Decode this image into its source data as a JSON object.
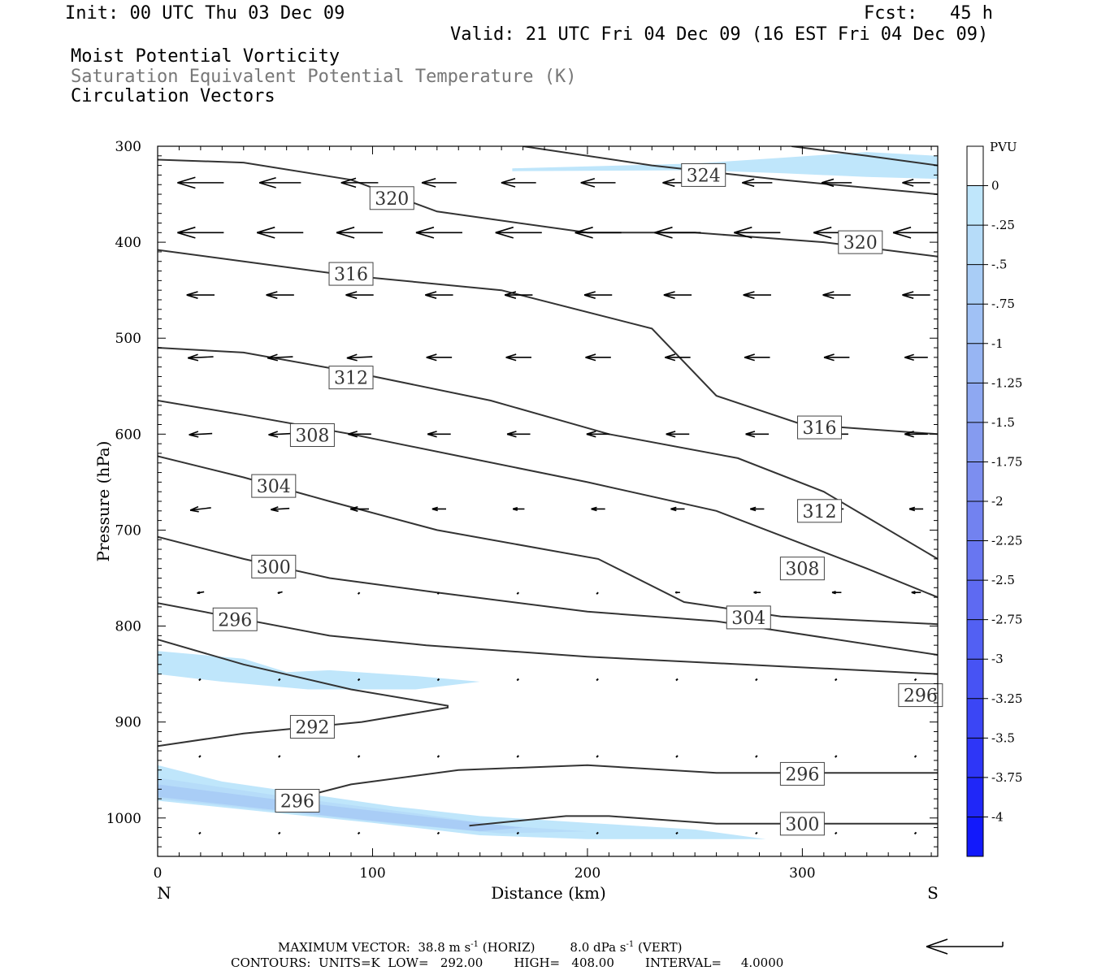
{
  "header": {
    "init": "Init: 00 UTC Thu 03 Dec 09",
    "fcst": "Fcst:   45 h",
    "valid": "Valid: 21 UTC Fri 04 Dec 09 (16 EST Fri 04 Dec 09)",
    "fields": [
      "Moist Potential Vorticity",
      "Saturation Equivalent Potential Temperature (K)",
      "Circulation Vectors"
    ]
  },
  "colors": {
    "contour": "#333333",
    "pv_light": "#bfe6fb",
    "pv_mid": "#a9cdf6",
    "pv_deep": "#9aaaf0",
    "vector": "#000000"
  },
  "chart_data": {
    "type": "contour",
    "xlabel": "Distance (km)",
    "ylabel": "Pressure (hPa)",
    "xlim": [
      0,
      363
    ],
    "ylim": [
      1040,
      300
    ],
    "x_ticks": [
      0,
      100,
      200,
      300
    ],
    "x_end_labels": {
      "left": "N",
      "right": "S"
    },
    "y_ticks": [
      300,
      400,
      500,
      600,
      700,
      800,
      900,
      1000
    ],
    "colorbar": {
      "title": "PVU",
      "labels": [
        "0",
        "-.25",
        "-.5",
        "-.75",
        "-1",
        "-1.25",
        "-1.5",
        "-1.75",
        "-2",
        "-2.25",
        "-2.5",
        "-2.75",
        "-3",
        "-3.25",
        "-3.5",
        "-3.75",
        "-4"
      ],
      "colors": [
        "#ffffff",
        "#bfe6fb",
        "#b6dcf9",
        "#a9cdf6",
        "#a0c1f5",
        "#97b5f3",
        "#8ea8f2",
        "#859bf0",
        "#7c8ef0",
        "#7282f0",
        "#6876f1",
        "#5e6af2",
        "#5260f3",
        "#4753f4",
        "#3b46f5",
        "#2e36f7",
        "#2027f8",
        "#1219fb"
      ]
    },
    "theta_es_contours": [
      {
        "value": 292,
        "labels": [
          {
            "x": 72,
            "p": 905
          }
        ],
        "points": [
          [
            0,
            925
          ],
          [
            40,
            912
          ],
          [
            95,
            900
          ],
          [
            135,
            885
          ],
          [
            135,
            883
          ],
          [
            90,
            866
          ],
          [
            40,
            840
          ],
          [
            0,
            814
          ]
        ]
      },
      {
        "value": 296,
        "labels": [
          {
            "x": 36,
            "p": 793
          },
          {
            "x": 355,
            "p": 872
          }
        ],
        "points": [
          [
            0,
            776
          ],
          [
            40,
            793
          ],
          [
            80,
            810
          ],
          [
            125,
            820
          ],
          [
            200,
            832
          ],
          [
            290,
            842
          ],
          [
            363,
            850
          ]
        ]
      },
      {
        "value": 296,
        "labels": [
          {
            "x": 300,
            "p": 954
          },
          {
            "x": 65,
            "p": 982
          }
        ],
        "points": [
          [
            55,
            985
          ],
          [
            90,
            965
          ],
          [
            140,
            950
          ],
          [
            200,
            945
          ],
          [
            260,
            953
          ],
          [
            363,
            953
          ]
        ]
      },
      {
        "value": 300,
        "labels": [
          {
            "x": 54,
            "p": 738
          },
          {
            "x": 300,
            "p": 1006
          }
        ],
        "points": [
          [
            0,
            707
          ],
          [
            40,
            730
          ],
          [
            80,
            750
          ],
          [
            130,
            765
          ],
          [
            200,
            785
          ],
          [
            260,
            795
          ],
          [
            363,
            830
          ]
        ]
      },
      {
        "value": 300,
        "labels": [],
        "points": [
          [
            145,
            1008
          ],
          [
            190,
            998
          ],
          [
            210,
            998
          ],
          [
            260,
            1006
          ],
          [
            363,
            1006
          ]
        ]
      },
      {
        "value": 304,
        "labels": [
          {
            "x": 54,
            "p": 654
          },
          {
            "x": 275,
            "p": 791
          }
        ],
        "points": [
          [
            0,
            623
          ],
          [
            40,
            645
          ],
          [
            80,
            670
          ],
          [
            130,
            700
          ],
          [
            205,
            730
          ],
          [
            245,
            775
          ],
          [
            290,
            790
          ],
          [
            363,
            798
          ]
        ]
      },
      {
        "value": 308,
        "labels": [
          {
            "x": 72,
            "p": 601
          },
          {
            "x": 300,
            "p": 740
          }
        ],
        "points": [
          [
            0,
            565
          ],
          [
            40,
            580
          ],
          [
            90,
            600
          ],
          [
            145,
            625
          ],
          [
            200,
            650
          ],
          [
            260,
            680
          ],
          [
            330,
            740
          ],
          [
            363,
            770
          ]
        ]
      },
      {
        "value": 312,
        "labels": [
          {
            "x": 90,
            "p": 541
          },
          {
            "x": 308,
            "p": 680
          }
        ],
        "points": [
          [
            0,
            510
          ],
          [
            40,
            515
          ],
          [
            90,
            535
          ],
          [
            155,
            565
          ],
          [
            210,
            600
          ],
          [
            270,
            625
          ],
          [
            310,
            660
          ],
          [
            363,
            730
          ]
        ]
      },
      {
        "value": 316,
        "labels": [
          {
            "x": 90,
            "p": 433
          },
          {
            "x": 308,
            "p": 593
          }
        ],
        "points": [
          [
            0,
            408
          ],
          [
            40,
            420
          ],
          [
            90,
            435
          ],
          [
            160,
            450
          ],
          [
            230,
            490
          ],
          [
            260,
            560
          ],
          [
            300,
            590
          ],
          [
            363,
            600
          ]
        ]
      },
      {
        "value": 320,
        "labels": [
          {
            "x": 109,
            "p": 354
          },
          {
            "x": 327,
            "p": 400
          }
        ],
        "points": [
          [
            0,
            314
          ],
          [
            40,
            317
          ],
          [
            90,
            335
          ],
          [
            130,
            368
          ],
          [
            200,
            390
          ],
          [
            250,
            390
          ],
          [
            310,
            400
          ],
          [
            363,
            415
          ]
        ]
      },
      {
        "value": 324,
        "labels": [
          {
            "x": 254,
            "p": 330
          }
        ],
        "points": [
          [
            170,
            300
          ],
          [
            230,
            320
          ],
          [
            290,
            335
          ],
          [
            363,
            350
          ]
        ]
      },
      {
        "value": 324,
        "labels": [],
        "points": [
          [
            295,
            300
          ],
          [
            330,
            310
          ],
          [
            363,
            320
          ]
        ]
      }
    ],
    "pv_shading": [
      {
        "level": -0.25,
        "points": [
          [
            0,
            826
          ],
          [
            40,
            834
          ],
          [
            60,
            848
          ],
          [
            80,
            846
          ],
          [
            120,
            852
          ],
          [
            150,
            858
          ],
          [
            120,
            866
          ],
          [
            70,
            866
          ],
          [
            30,
            858
          ],
          [
            0,
            850
          ]
        ]
      },
      {
        "level": -0.25,
        "points": [
          [
            165,
            323
          ],
          [
            250,
            318
          ],
          [
            290,
            312
          ],
          [
            330,
            306
          ],
          [
            363,
            310
          ],
          [
            363,
            334
          ],
          [
            330,
            332
          ],
          [
            290,
            328
          ],
          [
            250,
            325
          ],
          [
            165,
            326
          ]
        ]
      },
      {
        "level": -0.25,
        "points": [
          [
            0,
            945
          ],
          [
            30,
            962
          ],
          [
            70,
            975
          ],
          [
            110,
            988
          ],
          [
            150,
            998
          ],
          [
            200,
            1005
          ],
          [
            250,
            1012
          ],
          [
            283,
            1022
          ],
          [
            200,
            1022
          ],
          [
            150,
            1018
          ],
          [
            100,
            1005
          ],
          [
            0,
            982
          ]
        ]
      },
      {
        "level": -0.5,
        "points": [
          [
            0,
            958
          ],
          [
            60,
            978
          ],
          [
            120,
            995
          ],
          [
            160,
            1008
          ],
          [
            200,
            1014
          ],
          [
            160,
            1016
          ],
          [
            110,
            1006
          ],
          [
            0,
            980
          ]
        ]
      },
      {
        "level": -0.75,
        "points": [
          [
            0,
            965
          ],
          [
            60,
            982
          ],
          [
            130,
            1000
          ],
          [
            170,
            1010
          ],
          [
            150,
            1014
          ],
          [
            100,
            1003
          ],
          [
            0,
            978
          ]
        ]
      }
    ],
    "circulation_vectors": {
      "rows": [
        {
          "p": 338,
          "x": [
            20,
            57,
            94,
            131,
            168,
            205,
            242,
            279,
            316,
            353
          ],
          "u": [
            -20,
            -18,
            -16,
            -15,
            -15,
            -15,
            -13,
            -13,
            -13,
            -12
          ],
          "w": [
            0,
            0,
            0,
            0,
            0,
            0,
            0,
            0,
            0,
            0
          ]
        },
        {
          "p": 390,
          "x": [
            20,
            57,
            94,
            131,
            168,
            205,
            242,
            279,
            316,
            353
          ],
          "u": [
            -20,
            -20,
            -20,
            -20,
            -20,
            -20,
            -20,
            -20,
            -20,
            -20
          ],
          "w": [
            0,
            0,
            0,
            0,
            0,
            0,
            0,
            0,
            0,
            0
          ]
        },
        {
          "p": 455,
          "x": [
            20,
            57,
            94,
            131,
            168,
            205,
            242,
            279,
            316,
            353
          ],
          "u": [
            -12,
            -12,
            -12,
            -12,
            -12,
            -12,
            -12,
            -12,
            -12,
            -12
          ],
          "w": [
            0,
            0,
            0,
            0,
            0,
            0,
            0,
            0,
            0,
            0
          ]
        },
        {
          "p": 520,
          "x": [
            20,
            57,
            94,
            131,
            168,
            205,
            242,
            279,
            316,
            353
          ],
          "u": [
            -11,
            -11,
            -11,
            -11,
            -11,
            -11,
            -11,
            -11,
            -11,
            -10
          ],
          "w": [
            1,
            1,
            1,
            0,
            0,
            0,
            0,
            0,
            0,
            0
          ]
        },
        {
          "p": 600,
          "x": [
            20,
            57,
            94,
            131,
            168,
            205,
            242,
            279,
            316,
            353
          ],
          "u": [
            -10,
            -10,
            -10,
            -10,
            -10,
            -10,
            -10,
            -10,
            -10,
            -10
          ],
          "w": [
            1,
            1,
            0,
            0,
            0,
            0,
            0,
            0,
            0,
            0
          ]
        },
        {
          "p": 678,
          "x": [
            20,
            57,
            94,
            131,
            168,
            205,
            242,
            279,
            316,
            353
          ],
          "u": [
            -9,
            -8,
            -8,
            -6,
            -5,
            -6,
            -6,
            -6,
            -6,
            -6
          ],
          "w": [
            2,
            1,
            0,
            0,
            0,
            0,
            0,
            0,
            0,
            0
          ]
        },
        {
          "p": 765,
          "x": [
            20,
            57,
            94,
            131,
            168,
            205,
            242,
            279,
            316,
            353
          ],
          "u": [
            -3,
            -2,
            -1,
            -1,
            -1,
            -1,
            -2,
            -3,
            -4,
            -4
          ],
          "w": [
            1,
            1,
            0,
            0,
            0,
            0,
            0,
            0,
            0,
            0
          ]
        },
        {
          "p": 855,
          "x": [
            20,
            57,
            94,
            131,
            168,
            205,
            242,
            279,
            316,
            353
          ],
          "u": [
            -1,
            -1,
            -1,
            -1,
            0,
            0,
            0,
            0,
            0,
            0
          ],
          "w": [
            0,
            0,
            0,
            0,
            1,
            1,
            1,
            1,
            1,
            1
          ]
        },
        {
          "p": 935,
          "x": [
            20,
            57,
            94,
            131,
            168,
            205,
            242,
            279,
            316,
            353
          ],
          "u": [
            0,
            0,
            0,
            0,
            0,
            0,
            0,
            0,
            0,
            0
          ],
          "w": [
            1,
            1,
            1,
            1,
            1,
            1,
            1,
            1,
            1,
            1
          ]
        },
        {
          "p": 1015,
          "x": [
            20,
            57,
            94,
            131,
            168,
            205,
            242,
            279,
            316,
            353
          ],
          "u": [
            0,
            0,
            0,
            0,
            0,
            0,
            0,
            0,
            0,
            0
          ],
          "w": [
            1,
            1,
            1,
            1,
            1,
            1,
            1,
            1,
            1,
            1
          ]
        }
      ]
    }
  },
  "footer": {
    "line1_left": "MAXIMUM VECTOR:  38.8 m s",
    "line1_mid": "(HORIZ)",
    "line1_right": "8.0 dPa s",
    "line1_end": "(VERT)",
    "superscript": "-1",
    "line2": "CONTOURS:  UNITS=K  LOW=   292.00        HIGH=   408.00        INTERVAL=     4.0000"
  }
}
